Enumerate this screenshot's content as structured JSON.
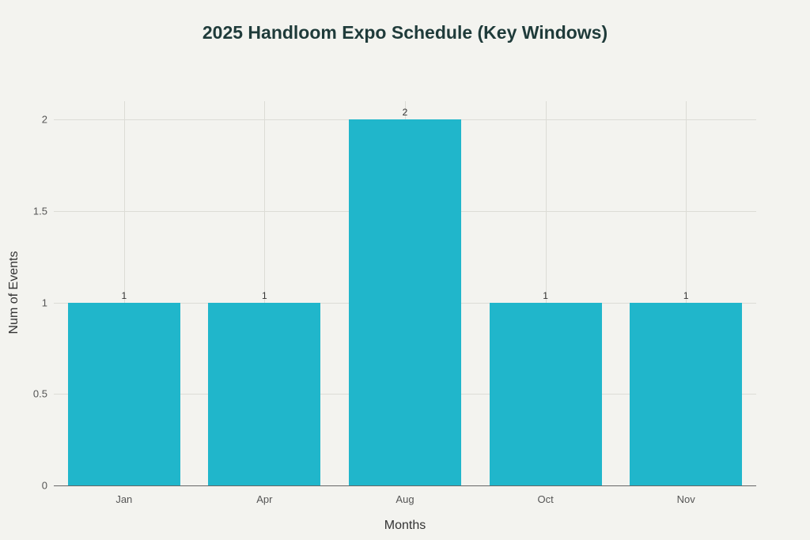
{
  "chart_data": {
    "type": "bar",
    "title": "2025 Handloom Expo Schedule (Key Windows)",
    "xlabel": "Months",
    "ylabel": "Num of Events",
    "categories": [
      "Jan",
      "Apr",
      "Aug",
      "Oct",
      "Nov"
    ],
    "values": [
      1,
      1,
      2,
      1,
      1
    ],
    "data_labels": [
      "1",
      "1",
      "2",
      "1",
      "1"
    ],
    "ylim": [
      0,
      2.1
    ],
    "yticks": [
      "0",
      "0.5",
      "1",
      "1.5",
      "2"
    ],
    "grid": true,
    "bar_color": "#20b6cb"
  }
}
